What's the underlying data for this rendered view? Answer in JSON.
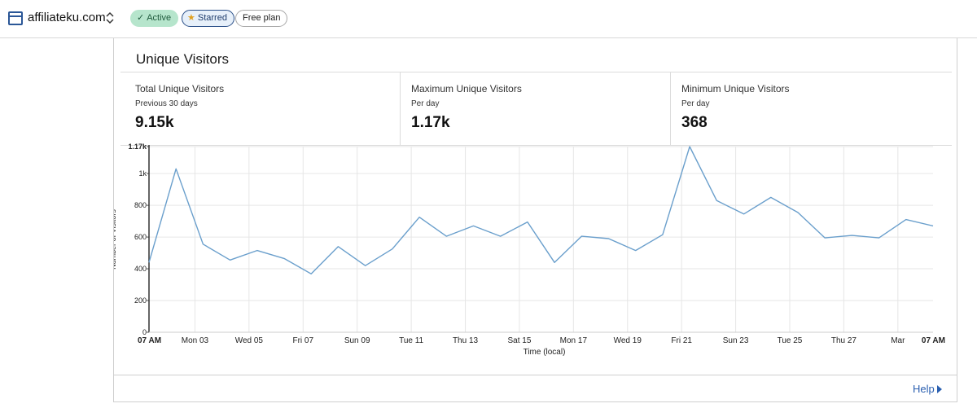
{
  "header": {
    "site_name": "affiliateku.com",
    "badges": {
      "active": "Active",
      "starred": "Starred",
      "plan": "Free plan"
    }
  },
  "card": {
    "title": "Unique Visitors",
    "stats": [
      {
        "label": "Total Unique Visitors",
        "sub": "Previous 30 days",
        "value": "9.15k"
      },
      {
        "label": "Maximum Unique Visitors",
        "sub": "Per day",
        "value": "1.17k"
      },
      {
        "label": "Minimum Unique Visitors",
        "sub": "Per day",
        "value": "368"
      }
    ],
    "help_label": "Help"
  },
  "colors": {
    "line": "#6a9fcc",
    "active_badge": "#b6e5cc",
    "starred_border": "#2a4f88",
    "link": "#2a5fb0"
  },
  "chart_data": {
    "type": "line",
    "xlabel": "Time (local)",
    "ylabel": "Number of Visitors",
    "ylim": [
      0,
      1170
    ],
    "yticks": [
      {
        "value": 0,
        "label": "0"
      },
      {
        "value": 200,
        "label": "200"
      },
      {
        "value": 400,
        "label": "400"
      },
      {
        "value": 600,
        "label": "600"
      },
      {
        "value": 800,
        "label": "800"
      },
      {
        "value": 1000,
        "label": "1k"
      },
      {
        "value": 1170,
        "label": "1.17k"
      }
    ],
    "xticks": [
      {
        "index": 0,
        "label": "07 AM",
        "bold": true
      },
      {
        "index": 1.7,
        "label": "Mon 03"
      },
      {
        "index": 3.7,
        "label": "Wed 05"
      },
      {
        "index": 5.7,
        "label": "Fri 07"
      },
      {
        "index": 7.7,
        "label": "Sun 09"
      },
      {
        "index": 9.7,
        "label": "Tue 11"
      },
      {
        "index": 11.7,
        "label": "Thu 13"
      },
      {
        "index": 13.7,
        "label": "Sat 15"
      },
      {
        "index": 15.7,
        "label": "Mon 17"
      },
      {
        "index": 17.7,
        "label": "Wed 19"
      },
      {
        "index": 19.7,
        "label": "Fri 21"
      },
      {
        "index": 21.7,
        "label": "Sun 23"
      },
      {
        "index": 23.7,
        "label": "Tue 25"
      },
      {
        "index": 25.7,
        "label": "Thu 27"
      },
      {
        "index": 27.7,
        "label": "Mar"
      },
      {
        "index": 29,
        "label": "07 AM",
        "bold": true
      }
    ],
    "series": [
      {
        "values": [
          440,
          1030,
          555,
          455,
          515,
          465,
          368,
          540,
          420,
          525,
          725,
          605,
          670,
          605,
          695,
          440,
          605,
          590,
          515,
          615,
          1170,
          830,
          745,
          850,
          755,
          595,
          610,
          595,
          710,
          670
        ]
      }
    ],
    "grid": true
  }
}
